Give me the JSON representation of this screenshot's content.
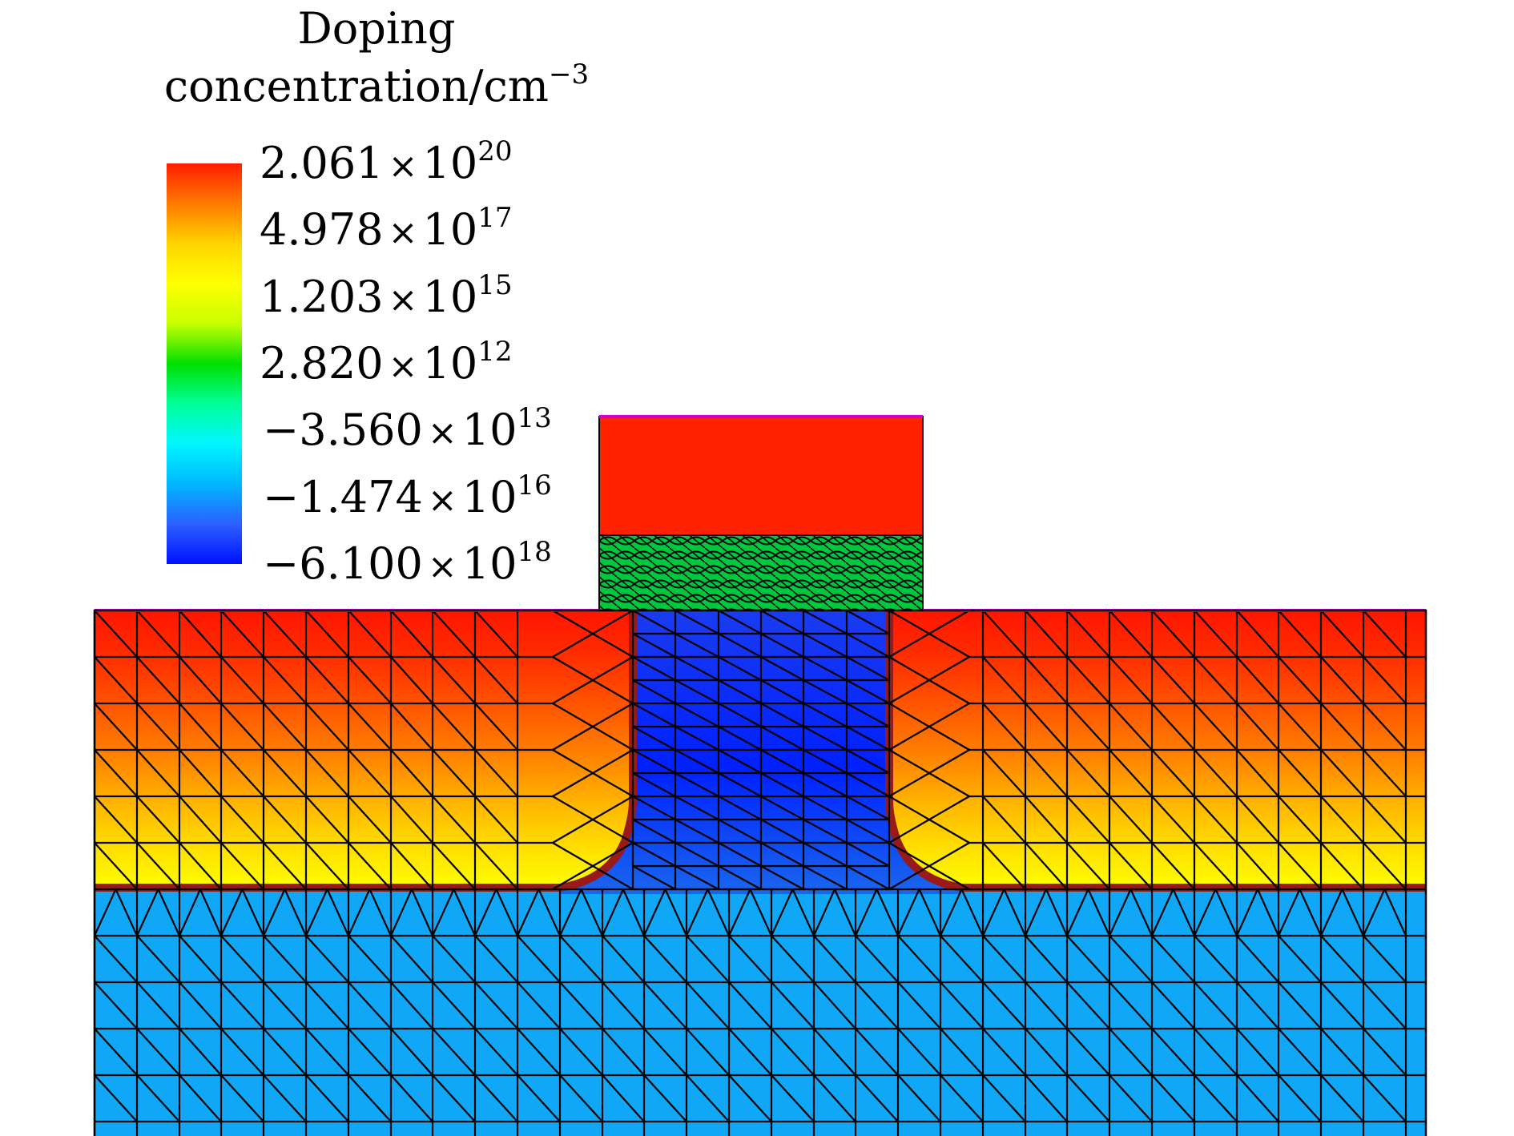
{
  "legend": {
    "title_line1": "Doping",
    "title_line2_base": "concentration/cm",
    "title_line2_exp": "−3",
    "ticks": [
      {
        "mantissa": "2.061",
        "exponent": "20"
      },
      {
        "mantissa": "4.978",
        "exponent": "17"
      },
      {
        "mantissa": "1.203",
        "exponent": "15"
      },
      {
        "mantissa": "2.820",
        "exponent": "12"
      },
      {
        "mantissa": "−3.560",
        "exponent": "13"
      },
      {
        "mantissa": "−1.474",
        "exponent": "16"
      },
      {
        "mantissa": "−6.100",
        "exponent": "18"
      }
    ],
    "times_symbol": "×",
    "base_ten": "10",
    "colorscale": [
      "#ff1e00",
      "#ff7a00",
      "#ffd400",
      "#ffff00",
      "#c8ff00",
      "#00e000",
      "#00ff9a",
      "#00f6ff",
      "#00b8ff",
      "#2c60ff",
      "#0010ff"
    ]
  },
  "device": {
    "gate_color": "#ff2200",
    "oxide_color": "#00c83c",
    "channel_color": "#1060f0",
    "substrate_color": "#10a8f6",
    "junction_color": "#9a1a1a",
    "surface_color": "#d000d0",
    "source_drain_gradient": [
      "#ff1500",
      "#ff2a00",
      "#ff4800",
      "#ff6a00",
      "#ff9000",
      "#ffbb00",
      "#ffe000",
      "#ffff00"
    ]
  }
}
